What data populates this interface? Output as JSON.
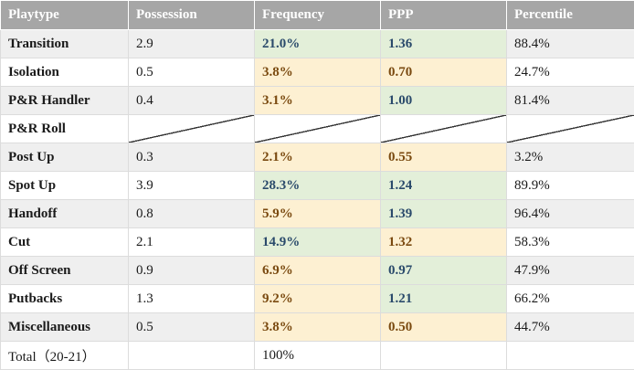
{
  "headers": [
    "Playtype",
    "Possession",
    "Frequency",
    "PPP",
    "Percentile"
  ],
  "rows": [
    {
      "type": "Transition",
      "possession": "2.9",
      "frequency": "21.0%",
      "ppp": "1.36",
      "percentile": "88.4%",
      "freq_tone": "good",
      "ppp_tone": "good"
    },
    {
      "type": "Isolation",
      "possession": "0.5",
      "frequency": "3.8%",
      "ppp": "0.70",
      "percentile": "24.7%",
      "freq_tone": "bad",
      "ppp_tone": "bad"
    },
    {
      "type": "P&R Handler",
      "possession": "0.4",
      "frequency": "3.1%",
      "ppp": "1.00",
      "percentile": "81.4%",
      "freq_tone": "bad",
      "ppp_tone": "good"
    },
    {
      "type": "P&R Roll",
      "possession": "",
      "frequency": "",
      "ppp": "",
      "percentile": "",
      "freq_tone": "none",
      "ppp_tone": "none",
      "empty": true
    },
    {
      "type": "Post Up",
      "possession": "0.3",
      "frequency": "2.1%",
      "ppp": "0.55",
      "percentile": "3.2%",
      "freq_tone": "bad",
      "ppp_tone": "bad"
    },
    {
      "type": "Spot Up",
      "possession": "3.9",
      "frequency": "28.3%",
      "ppp": "1.24",
      "percentile": "89.9%",
      "freq_tone": "good",
      "ppp_tone": "good"
    },
    {
      "type": "Handoff",
      "possession": "0.8",
      "frequency": "5.9%",
      "ppp": "1.39",
      "percentile": "96.4%",
      "freq_tone": "bad",
      "ppp_tone": "good"
    },
    {
      "type": "Cut",
      "possession": "2.1",
      "frequency": "14.9%",
      "ppp": "1.32",
      "percentile": "58.3%",
      "freq_tone": "good",
      "ppp_tone": "bad"
    },
    {
      "type": "Off Screen",
      "possession": "0.9",
      "frequency": "6.9%",
      "ppp": "0.97",
      "percentile": "47.9%",
      "freq_tone": "bad",
      "ppp_tone": "good"
    },
    {
      "type": "Putbacks",
      "possession": "1.3",
      "frequency": "9.2%",
      "ppp": "1.21",
      "percentile": "66.2%",
      "freq_tone": "bad",
      "ppp_tone": "good"
    },
    {
      "type": "Miscellaneous",
      "possession": "0.5",
      "frequency": "3.8%",
      "ppp": "0.50",
      "percentile": "44.7%",
      "freq_tone": "bad",
      "ppp_tone": "bad"
    }
  ],
  "total": {
    "label": "Total（20-21）",
    "frequency": "100%"
  },
  "colors": {
    "header_bg": "#a6a6a6",
    "row_shade": "#efefef",
    "good_bg": "#e3efd9",
    "good_text": "#2a4a6b",
    "bad_bg": "#fdf0d2",
    "bad_text": "#7a4a10"
  }
}
